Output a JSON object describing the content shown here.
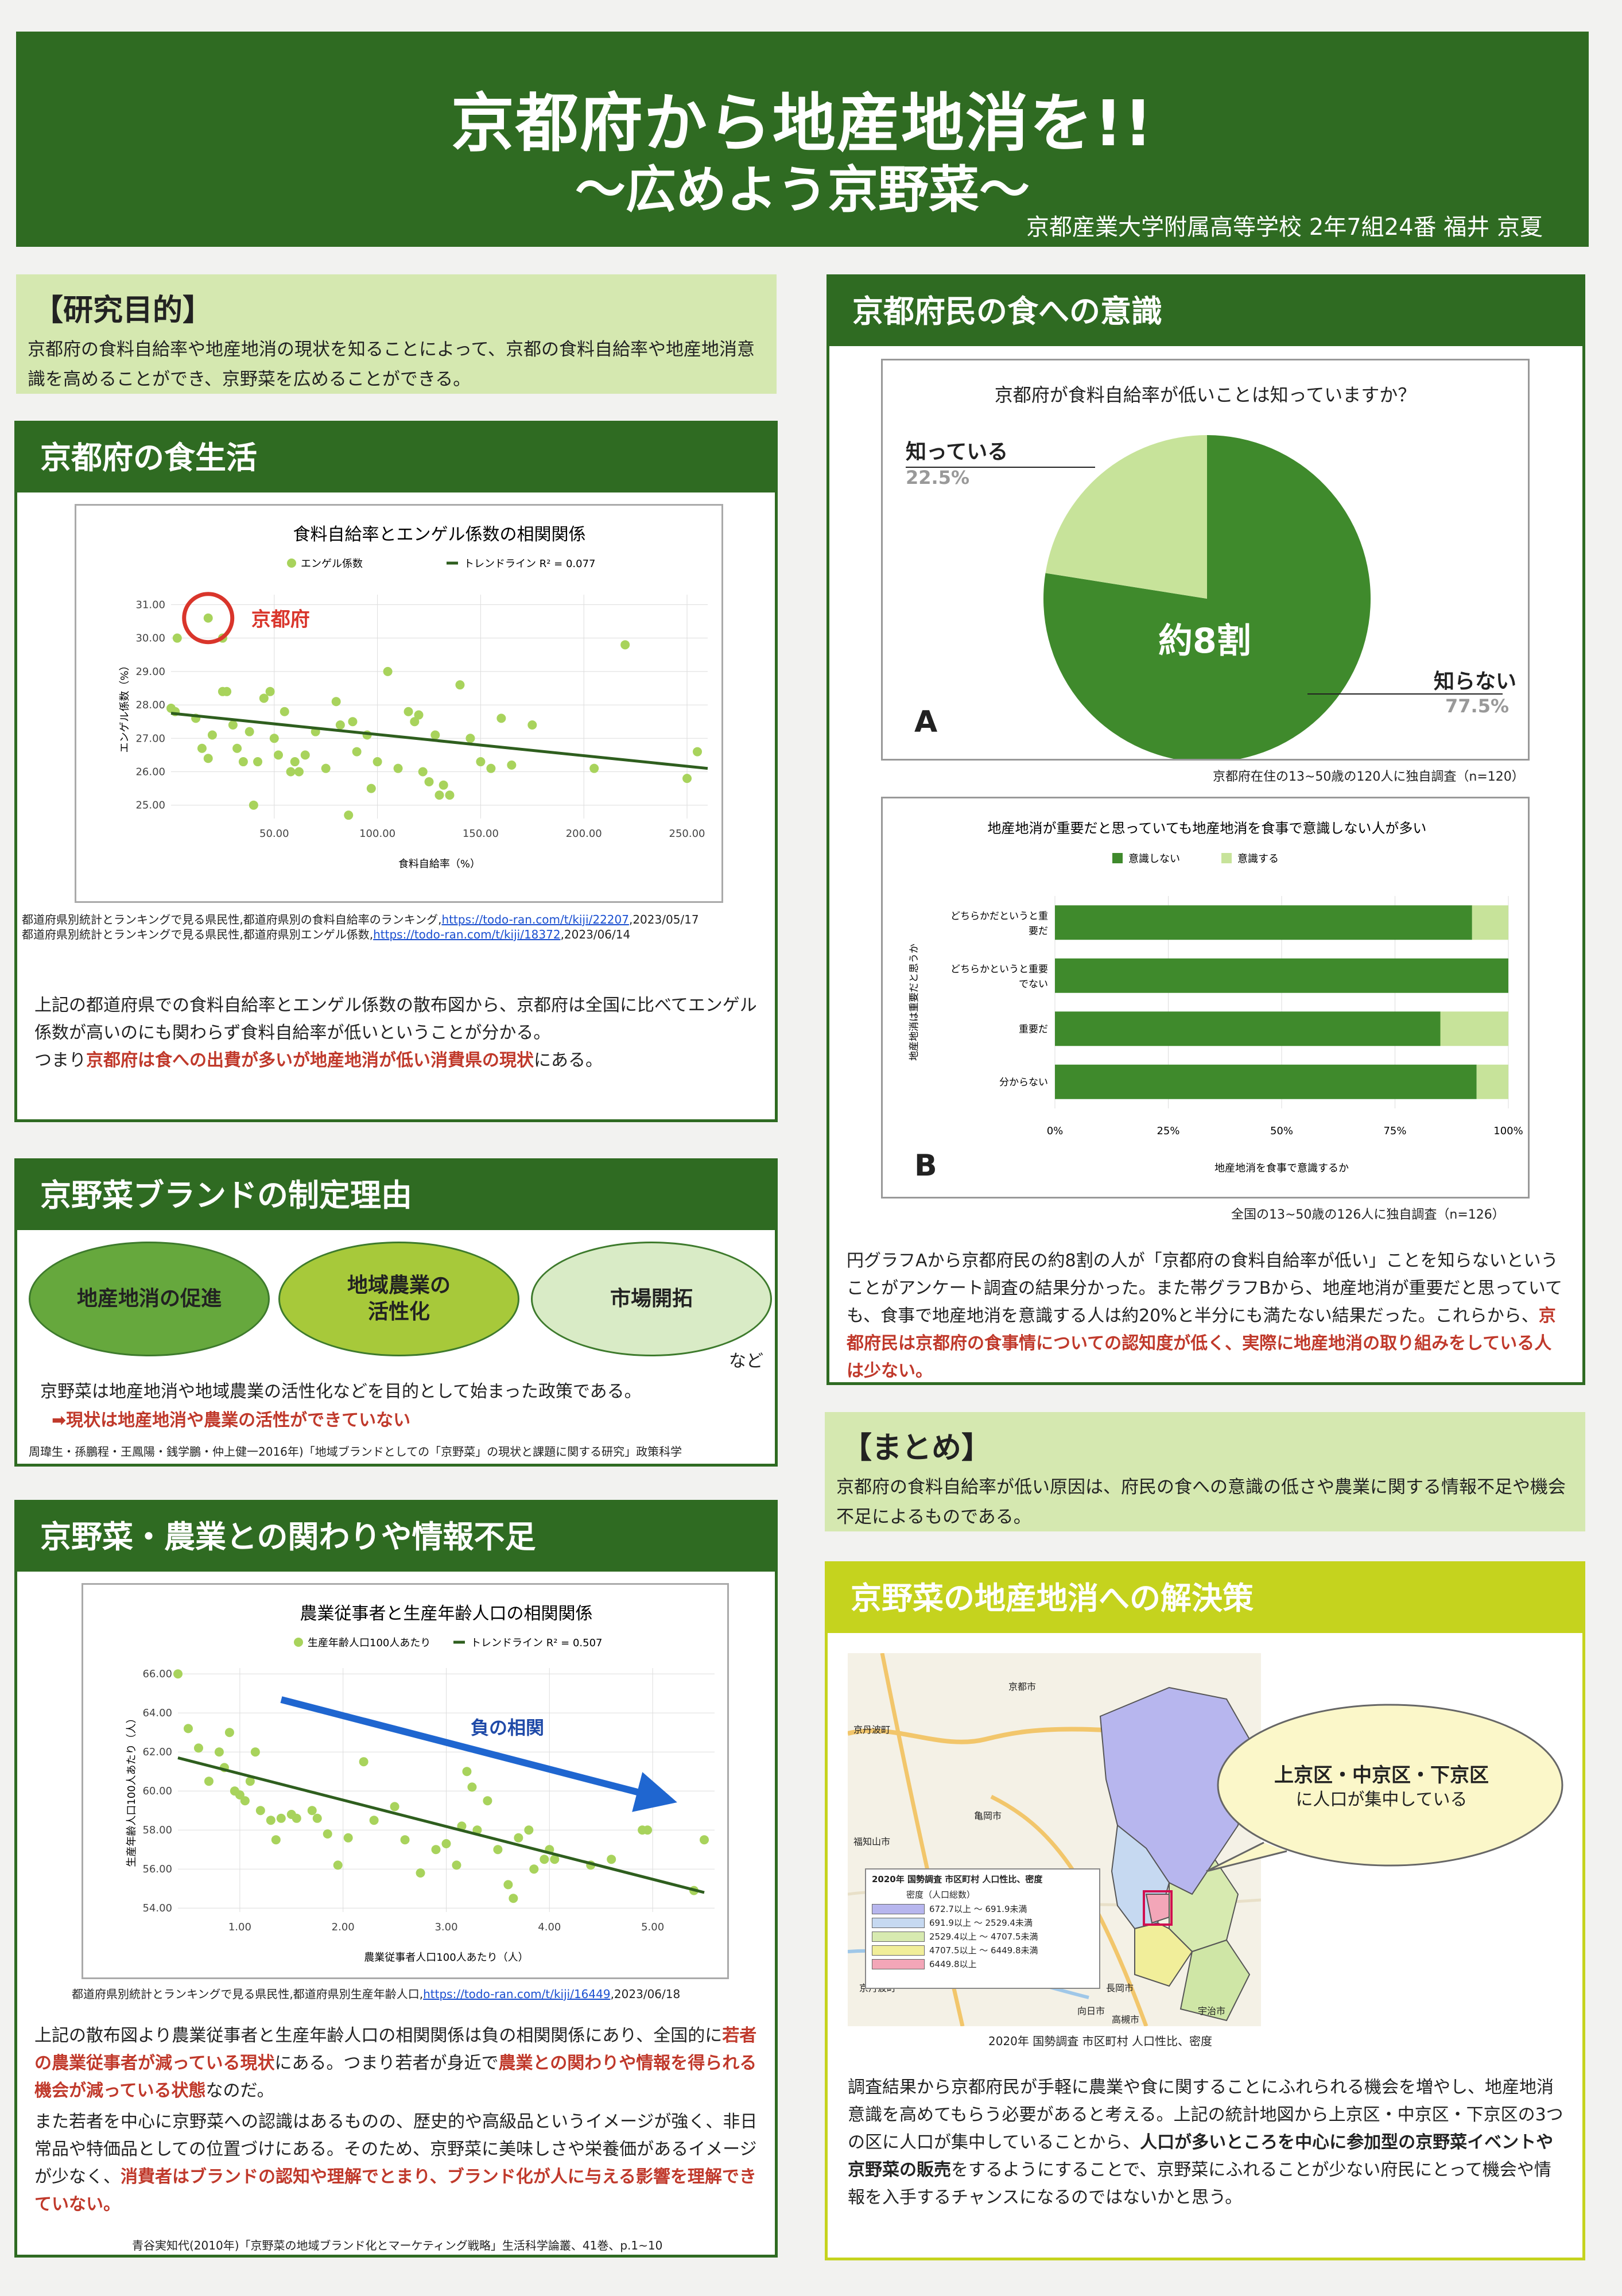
{
  "header": {
    "title": "京都府から地産地消を!!",
    "subtitle": "～広めよう京野菜～",
    "affiliation": "京都産業大学附属高等学校 2年7組24番 福井 京夏"
  },
  "purpose": {
    "heading": "【研究目的】",
    "body": "京都府の食料自給率や地産地消の現状を知ることによって、京都の食料自給率や地産地消意識を高めることができ、京野菜を広めることができる。"
  },
  "food_life": {
    "heading": "京都府の食生活",
    "source1_text": "都道府県別統計とランキングで見る県民性,都道府県別の食料自給率のランキング,",
    "source1_link": "https://todo-ran.com/t/kiji/22207",
    "source1_date": ",2023/05/17",
    "source2_text": "都道府県別統計とランキングで見る県民性,都道府県別エンゲル係数,",
    "source2_link": "https://todo-ran.com/t/kiji/18372",
    "source2_date": ",2023/06/14",
    "para_1": "上記の都道府県での食料自給率とエンゲル係数の散布図から、京都府は全国に比べてエンゲル係数が高いのにも関わらず食料自給率が低いということが分かる。",
    "para_2a": "つまり",
    "para_2_red": "京都府は食への出費が多いが地産地消が低い消費県の現状",
    "para_2b": "にある。"
  },
  "brand": {
    "heading": "京野菜ブランドの制定理由",
    "ellipse1": "地産地消の促進",
    "ellipse2_line1": "地域農業の",
    "ellipse2_line2": "活性化",
    "ellipse3": "市場開拓",
    "etc": "など",
    "body": "京野菜は地産地消や地域農業の活性化などを目的として始まった政策である。",
    "arrow_red": "➡現状は地産地消や農業の活性ができていない",
    "source": "周瑋生・孫鵬程・王鳳陽・銭学鵬・仲上健一2016年)「地域ブランドとしての「京野菜」の現状と課題に関する研究」政策科学"
  },
  "agri": {
    "heading": "京野菜・農業との関わりや情報不足",
    "source": "都道府県別統計とランキングで見る県民性,都道府県別生産年齢人口,",
    "source_link": "https://todo-ran.com/t/kiji/16449",
    "source_date": ",2023/06/18",
    "p1a": "上記の散布図より農業従事者と生産年齢人口の相関関係は負の相関関係にあり、全国的に",
    "p1_red1": "若者の農業従事者が減っている現状",
    "p1b": "にある。つまり若者が身近で",
    "p1_red2": "農業との関わりや情報を得られる機会が減っている状態",
    "p1c": "なのだ。",
    "p2a": "また若者を中心に京野菜への認識はあるものの、歴史的や高級品というイメージが強く、非日常品や特価品としての位置づけにある。そのため、京野菜に美味しさや栄養価があるイメージが少なく、",
    "p2_red": "消費者はブランドの認知や理解でとまり、ブランド化が人に与える影響を理解できていない。",
    "source2": "青谷実知代(2010年)「京野菜の地域ブランド化とマーケティング戦略」生活科学論叢、41巻、p.1~10"
  },
  "awareness": {
    "heading": "京都府民の食への意識",
    "pie_title": "京都府が食料自給率が低いことは知っていますか？",
    "pie_know_label": "知っている",
    "pie_know_pct": "22.5%",
    "pie_unknown_label": "知らない",
    "pie_unknown_pct": "77.5%",
    "pie_center": "約8割",
    "pie_letter": "A",
    "pie_source": "京都府在住の13~50歳の120人に独自調査（n=120）",
    "bar_title": "地産地消が重要だと思っていても地産地消を食事で意識しない人が多い",
    "bar_legend_no": "意識しない",
    "bar_legend_yes": "意識する",
    "bar_ylabel": "地産地消は重要だと思うか",
    "bar_xlabel": "地産地消を食事で意識するか",
    "bar_letter": "B",
    "bar_source": "全国の13~50歳の126人に独自調査（n=126）",
    "cat1_line1": "どちらかだというと重",
    "cat1_line2": "要だ",
    "cat2_line1": "どちらかというと重要",
    "cat2_line2": "でない",
    "cat3": "重要だ",
    "cat4": "分からない",
    "para_a": "円グラフAから京都府民の約8割の人が「京都府の食料自給率が低い」ことを知らないということがアンケート調査の結果分かった。また帯グラフBから、地産地消が重要だと思っていても、食事で地産地消を意識する人は約20%と半分にも満たない結果だった。これらから、",
    "para_red": "京都府民は京都府の食事情についての認知度が低く、実際に地産地消の取り組みをしている人は少ない。"
  },
  "summary": {
    "heading": "【まとめ】",
    "body": "京都府の食料自給率が低い原因は、府民の食への意識の低さや農業に関する情報不足や機会不足によるものである。"
  },
  "solution": {
    "heading": "京野菜の地産地消への解決策",
    "bubble_bold": "上京区・中京区・下京区",
    "bubble_text": "に人口が集中している",
    "map_legend_title": "2020年 国勢調査 市区町村 人口性比、密度",
    "map_legend_sub": "密度（人口総数）",
    "map_legend_rows": [
      "672.7以上 ～ 691.9未満",
      "691.9以上 ～ 2529.4未満",
      "2529.4以上 ～ 4707.5未満",
      "4707.5以上 ～ 6449.8未満",
      "6449.8以上"
    ],
    "map_caption": "2020年 国勢調査 市区町村 人口性比、密度",
    "map_place_labels": [
      "京都市",
      "京丹波町",
      "亀岡市",
      "福知山市",
      "長岡市",
      "向日市",
      "宇治市",
      "高槻市",
      "京丹波町"
    ],
    "para_a": "調査結果から京都府民が手軽に農業や食に関することにふれられる機会を増やし、地産地消意識を高めてもらう必要があると考える。上記の統計地図から上京区・中京区・下京区の3つの区に人口が集中していることから、",
    "para_bold": "人口が多いところを中心に参加型の京野菜イベントや京野菜の販売",
    "para_b": "をするようにすることで、京野菜にふれることが少ない府民にとって機会や情報を入手するチャンスになるのではないかと思う。"
  },
  "chart_data": [
    {
      "type": "scatter",
      "title": "食料自給率とエンゲル係数の相関関係",
      "xlabel": "食料自給率（%）",
      "ylabel": "エンゲル係数（%）",
      "xticks": [
        "50.00",
        "100.00",
        "150.00",
        "200.00",
        "250.00"
      ],
      "yticks": [
        "31.00",
        "30.00",
        "29.00",
        "28.00",
        "27.00",
        "26.00",
        "25.00"
      ],
      "xlim": [
        0,
        260
      ],
      "ylim": [
        24.6,
        31.3
      ],
      "legend": [
        "エンゲル係数",
        "トレンドライン R² = 0.077"
      ],
      "annotation": "京都府",
      "highlight": {
        "x": 18,
        "y": 30.6
      },
      "trend": [
        [
          0,
          27.75
        ],
        [
          260,
          26.1
        ]
      ],
      "points": [
        [
          3,
          30.0
        ],
        [
          18,
          30.6
        ],
        [
          25,
          30.0
        ],
        [
          0,
          27.9
        ],
        [
          2,
          27.8
        ],
        [
          12,
          27.6
        ],
        [
          15,
          26.7
        ],
        [
          18,
          26.4
        ],
        [
          20,
          27.1
        ],
        [
          25,
          28.4
        ],
        [
          27,
          28.4
        ],
        [
          30,
          27.4
        ],
        [
          32,
          26.7
        ],
        [
          35,
          26.3
        ],
        [
          38,
          27.2
        ],
        [
          40,
          25.0
        ],
        [
          42,
          26.3
        ],
        [
          45,
          28.2
        ],
        [
          48,
          28.4
        ],
        [
          50,
          27.0
        ],
        [
          52,
          26.5
        ],
        [
          55,
          27.8
        ],
        [
          58,
          26.0
        ],
        [
          60,
          26.3
        ],
        [
          62,
          26.0
        ],
        [
          65,
          26.5
        ],
        [
          70,
          27.2
        ],
        [
          75,
          26.1
        ],
        [
          80,
          28.1
        ],
        [
          82,
          27.4
        ],
        [
          86,
          24.7
        ],
        [
          88,
          27.5
        ],
        [
          90,
          26.6
        ],
        [
          95,
          27.1
        ],
        [
          97,
          25.5
        ],
        [
          100,
          26.3
        ],
        [
          105,
          29.0
        ],
        [
          110,
          26.1
        ],
        [
          115,
          27.8
        ],
        [
          118,
          27.5
        ],
        [
          120,
          27.7
        ],
        [
          122,
          26.0
        ],
        [
          125,
          25.7
        ],
        [
          128,
          27.1
        ],
        [
          130,
          25.3
        ],
        [
          132,
          25.6
        ],
        [
          135,
          25.3
        ],
        [
          140,
          28.6
        ],
        [
          145,
          27.0
        ],
        [
          150,
          26.3
        ],
        [
          155,
          26.1
        ],
        [
          160,
          27.6
        ],
        [
          165,
          26.2
        ],
        [
          175,
          27.4
        ],
        [
          205,
          26.1
        ],
        [
          220,
          29.8
        ],
        [
          250,
          25.8
        ],
        [
          255,
          26.6
        ]
      ]
    },
    {
      "type": "scatter",
      "title": "農業従事者と生産年齢人口の相関関係",
      "xlabel": "農業従事者人口100人あたり（人）",
      "ylabel": "生産年齢人口100人あたり（人）",
      "xticks": [
        "1.00",
        "2.00",
        "3.00",
        "4.00",
        "5.00"
      ],
      "yticks": [
        "66.00",
        "64.00",
        "62.00",
        "60.00",
        "58.00",
        "56.00",
        "54.00"
      ],
      "xlim": [
        0.4,
        5.6
      ],
      "ylim": [
        53.8,
        66.3
      ],
      "legend": [
        "生産年齢人口100人あたり",
        "トレンドライン R² = 0.507"
      ],
      "annotation": "負の相関",
      "trend": [
        [
          0.4,
          61.7
        ],
        [
          5.5,
          54.8
        ]
      ],
      "points": [
        [
          0.4,
          66.0
        ],
        [
          0.5,
          63.2
        ],
        [
          0.6,
          62.2
        ],
        [
          0.7,
          60.5
        ],
        [
          0.8,
          62.0
        ],
        [
          0.85,
          61.2
        ],
        [
          0.9,
          63.0
        ],
        [
          0.95,
          60.0
        ],
        [
          1.0,
          59.8
        ],
        [
          1.05,
          59.5
        ],
        [
          1.1,
          60.5
        ],
        [
          1.15,
          62.0
        ],
        [
          1.2,
          59.0
        ],
        [
          1.3,
          58.5
        ],
        [
          1.35,
          57.5
        ],
        [
          1.4,
          58.6
        ],
        [
          1.5,
          58.8
        ],
        [
          1.55,
          58.6
        ],
        [
          1.7,
          59.0
        ],
        [
          1.75,
          58.6
        ],
        [
          1.85,
          57.8
        ],
        [
          1.95,
          56.2
        ],
        [
          2.05,
          57.6
        ],
        [
          2.2,
          61.5
        ],
        [
          2.3,
          58.5
        ],
        [
          2.5,
          59.2
        ],
        [
          2.6,
          57.5
        ],
        [
          2.75,
          55.8
        ],
        [
          2.9,
          57.0
        ],
        [
          3.0,
          57.3
        ],
        [
          3.1,
          56.2
        ],
        [
          3.15,
          58.2
        ],
        [
          3.2,
          61.0
        ],
        [
          3.25,
          60.2
        ],
        [
          3.3,
          58.0
        ],
        [
          3.4,
          59.5
        ],
        [
          3.5,
          57.0
        ],
        [
          3.6,
          55.2
        ],
        [
          3.65,
          54.5
        ],
        [
          3.7,
          57.6
        ],
        [
          3.8,
          58.0
        ],
        [
          3.85,
          56.0
        ],
        [
          3.95,
          56.5
        ],
        [
          4.0,
          57.0
        ],
        [
          4.05,
          56.5
        ],
        [
          4.4,
          56.2
        ],
        [
          4.6,
          56.5
        ],
        [
          4.9,
          58.0
        ],
        [
          4.95,
          58.0
        ],
        [
          5.4,
          54.9
        ],
        [
          5.5,
          57.5
        ]
      ]
    },
    {
      "type": "pie",
      "title": "京都府が食料自給率が低いことは知っていますか？",
      "labels": [
        "知っている",
        "知らない"
      ],
      "values": [
        22.5,
        77.5
      ],
      "colors": [
        "#c7e39a",
        "#3f8a2c"
      ]
    },
    {
      "type": "bar",
      "title": "地産地消が重要だと思っていても地産地消を食事で意識しない人が多い",
      "stacked": true,
      "orientation": "horizontal",
      "categories": [
        "どちらかだというと重要だ",
        "どちらかというと重要でない",
        "重要だ",
        "分からない"
      ],
      "series": [
        {
          "name": "意識しない",
          "values": [
            0.92,
            1.0,
            0.85,
            0.93
          ]
        },
        {
          "name": "意識する",
          "values": [
            0.08,
            0.0,
            0.15,
            0.07
          ]
        }
      ],
      "xticks": [
        "0%",
        "25%",
        "50%",
        "75%",
        "100%"
      ],
      "xlabel": "地産地消を食事で意識するか",
      "ylabel": "地産地消は重要だと思うか"
    }
  ]
}
